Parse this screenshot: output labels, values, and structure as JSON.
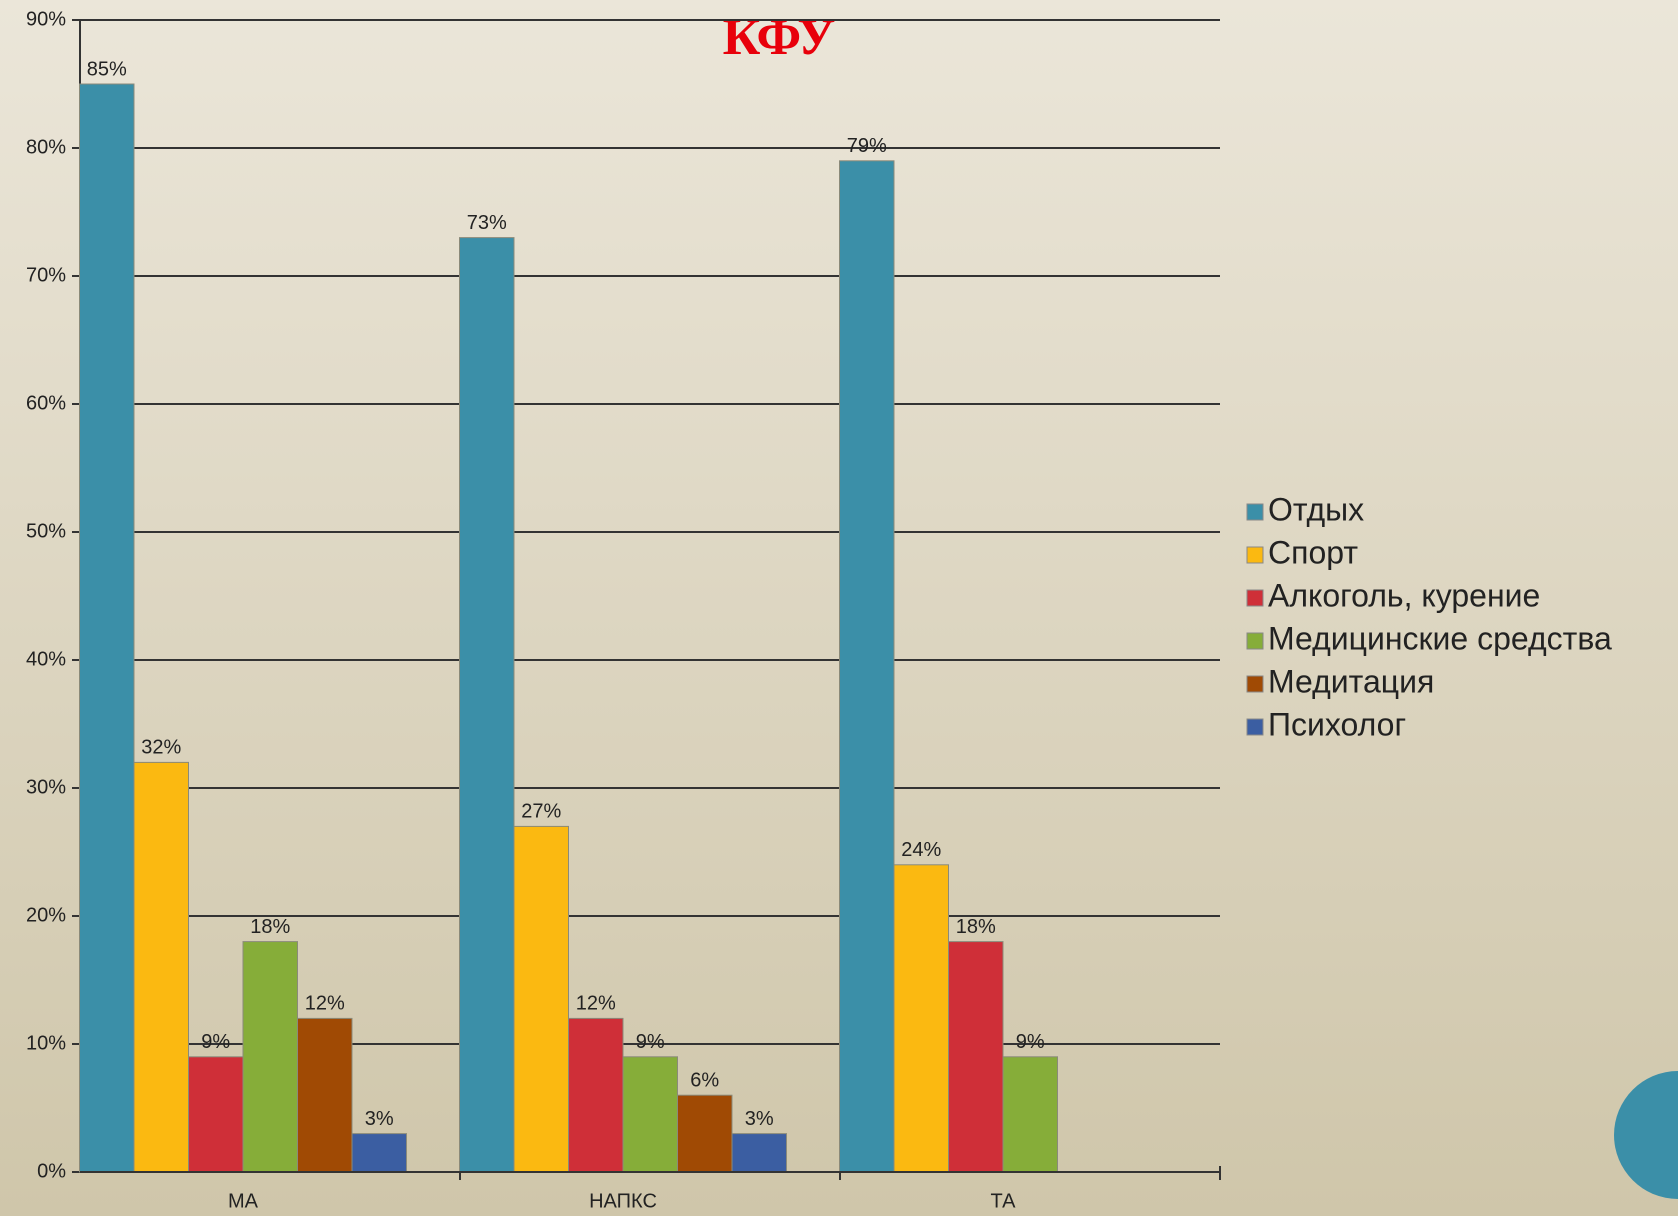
{
  "chart_data": {
    "type": "bar",
    "title": "КФУ",
    "categories": [
      "МА",
      "НАПКС",
      "ТА"
    ],
    "series": [
      {
        "name": "Отдых",
        "color": "#3b8fa8",
        "values": [
          85,
          73,
          79
        ],
        "value_labels": [
          "85%",
          "73%",
          "79%"
        ]
      },
      {
        "name": "Спорт",
        "color": "#fbb911",
        "values": [
          32,
          27,
          24
        ],
        "value_labels": [
          "32%",
          "27%",
          "24%"
        ]
      },
      {
        "name": "Алкоголь, курение",
        "color": "#cf2f38",
        "values": [
          9,
          12,
          18
        ],
        "value_labels": [
          "9%",
          "12%",
          "18%"
        ]
      },
      {
        "name": "Медицинские средства",
        "color": "#86ad39",
        "values": [
          18,
          9,
          9
        ],
        "value_labels": [
          "18%",
          "9%",
          "9%"
        ]
      },
      {
        "name": "Медитация",
        "color": "#a04a04",
        "values": [
          12,
          6,
          null
        ],
        "value_labels": [
          "12%",
          "6%",
          null
        ]
      },
      {
        "name": "Психолог",
        "color": "#3b5ea2",
        "values": [
          3,
          3,
          null
        ],
        "value_labels": [
          "3%",
          "3%",
          null
        ]
      }
    ],
    "ylim": [
      0,
      90
    ],
    "yticks": [
      {
        "value": 0,
        "label": "0%"
      },
      {
        "value": 10,
        "label": "10%"
      },
      {
        "value": 20,
        "label": "20%"
      },
      {
        "value": 30,
        "label": "30%"
      },
      {
        "value": 40,
        "label": "40%"
      },
      {
        "value": 50,
        "label": "50%"
      },
      {
        "value": 60,
        "label": "60%"
      },
      {
        "value": 70,
        "label": "70%"
      },
      {
        "value": 80,
        "label": "80%"
      },
      {
        "value": 90,
        "label": "90%"
      }
    ],
    "grid": true,
    "legend": "right"
  }
}
